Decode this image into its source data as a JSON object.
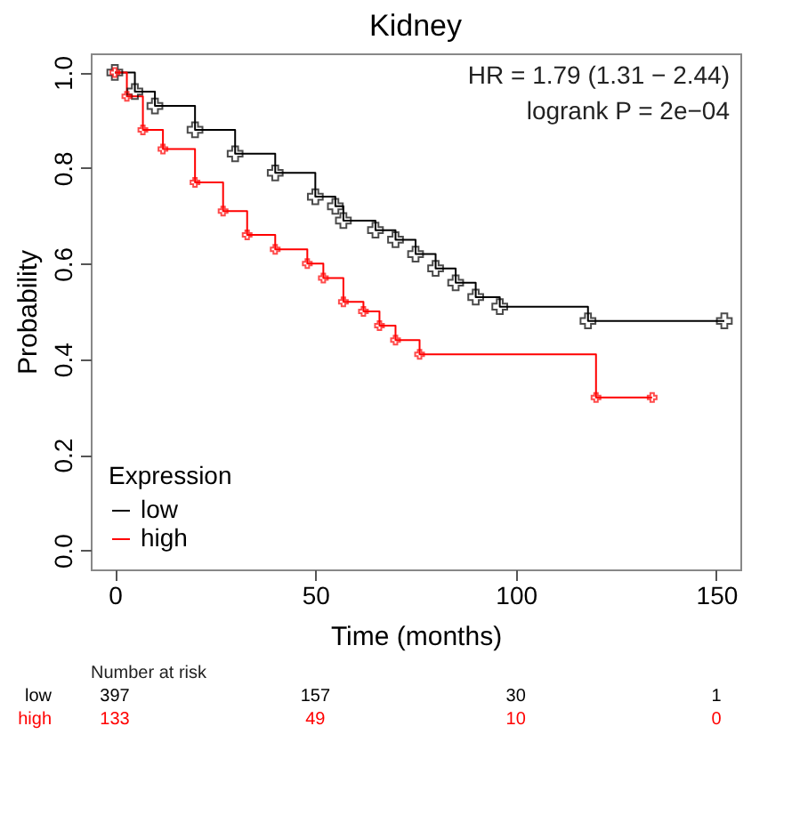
{
  "chart_data": {
    "type": "step",
    "title": "Kidney",
    "xlabel": "Time (months)",
    "ylabel": "Probability",
    "legend_title": "Expression",
    "annotations": [
      "HR = 1.79 (1.31 − 2.44)",
      "logrank P = 2e−04",
      "Number at risk",
      "low",
      "397",
      "157",
      "30",
      "1",
      "high",
      "133",
      "49",
      "10",
      "0"
    ],
    "xlim": [
      -6,
      156
    ],
    "xticks": [
      0,
      50,
      100,
      150
    ],
    "ylim": [
      -0.04,
      1.04
    ],
    "yticks": [
      {
        "value": 0,
        "label": "0.0"
      },
      0.2,
      0.4,
      0.6,
      0.8,
      {
        "value": 1,
        "label": "1.0"
      }
    ],
    "grid": false,
    "legend": "bottom left",
    "marker": "cross",
    "line_style": "solid",
    "series": [
      {
        "name": "low",
        "color": "#000000",
        "x": [
          0,
          5,
          10,
          20,
          30,
          40,
          50,
          55,
          57,
          65,
          70,
          75,
          80,
          85,
          90,
          96,
          118,
          152
        ],
        "values": [
          1,
          0.96,
          0.93,
          0.88,
          0.83,
          0.79,
          0.74,
          0.72,
          0.69,
          0.67,
          0.65,
          0.62,
          0.59,
          0.56,
          0.53,
          0.51,
          0.48,
          0.48
        ]
      },
      {
        "name": "high",
        "color": "#ff0000",
        "x": [
          0,
          3,
          7,
          12,
          20,
          27,
          33,
          40,
          48,
          52,
          57,
          62,
          66,
          70,
          76,
          120,
          134
        ],
        "values": [
          1,
          0.95,
          0.88,
          0.84,
          0.77,
          0.71,
          0.66,
          0.63,
          0.6,
          0.57,
          0.52,
          0.5,
          0.47,
          0.44,
          0.41,
          0.32,
          0.32
        ]
      }
    ]
  }
}
